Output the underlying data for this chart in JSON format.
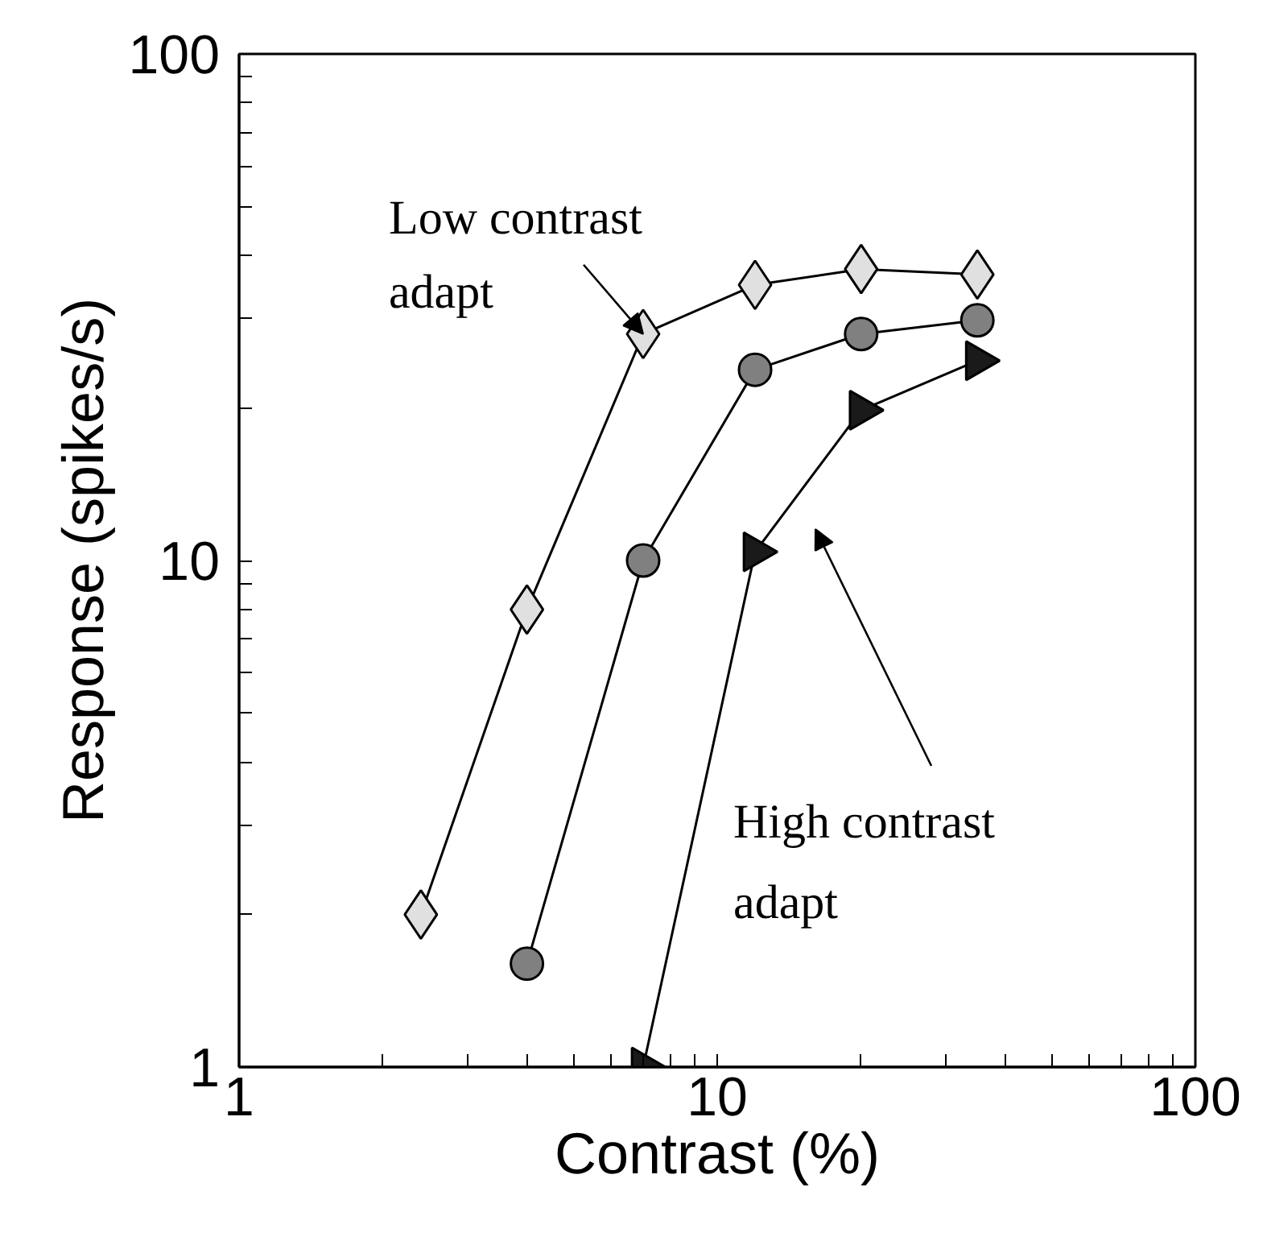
{
  "chart_data": {
    "type": "line",
    "xlabel": "Contrast (%)",
    "ylabel": "Response (spikes/s)",
    "log": "xy",
    "grid": false,
    "xlim": [
      1,
      100
    ],
    "ylim": [
      1,
      100
    ],
    "xticks": [
      1,
      {
        "value": 2,
        "label": null
      },
      {
        "value": 3,
        "label": null
      },
      {
        "value": 4,
        "label": null
      },
      {
        "value": 5,
        "label": null
      },
      {
        "value": 6,
        "label": null
      },
      {
        "value": 7,
        "label": null
      },
      {
        "value": 8,
        "label": null
      },
      {
        "value": 9,
        "label": null
      },
      10,
      {
        "value": 20,
        "label": null
      },
      {
        "value": 30,
        "label": null
      },
      {
        "value": 40,
        "label": null
      },
      {
        "value": 50,
        "label": null
      },
      {
        "value": 60,
        "label": null
      },
      {
        "value": 70,
        "label": null
      },
      {
        "value": 80,
        "label": null
      },
      {
        "value": 90,
        "label": null
      },
      100
    ],
    "yticks": [
      1,
      {
        "value": 2,
        "label": null
      },
      {
        "value": 3,
        "label": null
      },
      {
        "value": 4,
        "label": null
      },
      {
        "value": 5,
        "label": null
      },
      {
        "value": 6,
        "label": null
      },
      {
        "value": 7,
        "label": null
      },
      {
        "value": 8,
        "label": null
      },
      {
        "value": 9,
        "label": null
      },
      10,
      {
        "value": 20,
        "label": null
      },
      {
        "value": 30,
        "label": null
      },
      {
        "value": 40,
        "label": null
      },
      {
        "value": 50,
        "label": null
      },
      {
        "value": 60,
        "label": null
      },
      {
        "value": 70,
        "label": null
      },
      {
        "value": 80,
        "label": null
      },
      {
        "value": 90,
        "label": null
      },
      100
    ],
    "series": [
      {
        "color": "#e0e0e0",
        "marker": "diamond",
        "x": [
          2.4,
          4.0,
          7.0,
          12,
          20,
          35
        ],
        "values": [
          2.0,
          8.0,
          28,
          35,
          37.6,
          36.7
        ]
      },
      {
        "color": "#808080",
        "marker": "circle",
        "x": [
          4.0,
          7.0,
          12,
          20,
          35
        ],
        "values": [
          1.6,
          10,
          23.8,
          28,
          29.8
        ]
      },
      {
        "color": "#1a1a1a",
        "marker": "triangle",
        "x": [
          7.0,
          12,
          20,
          35
        ],
        "values": [
          1.0,
          10.4,
          19.8,
          24.8
        ]
      }
    ],
    "annotations": [
      {
        "text": "Low contrast\nadapt",
        "x": 7.0,
        "y": 28
      },
      "High contrast\nadapt"
    ]
  }
}
